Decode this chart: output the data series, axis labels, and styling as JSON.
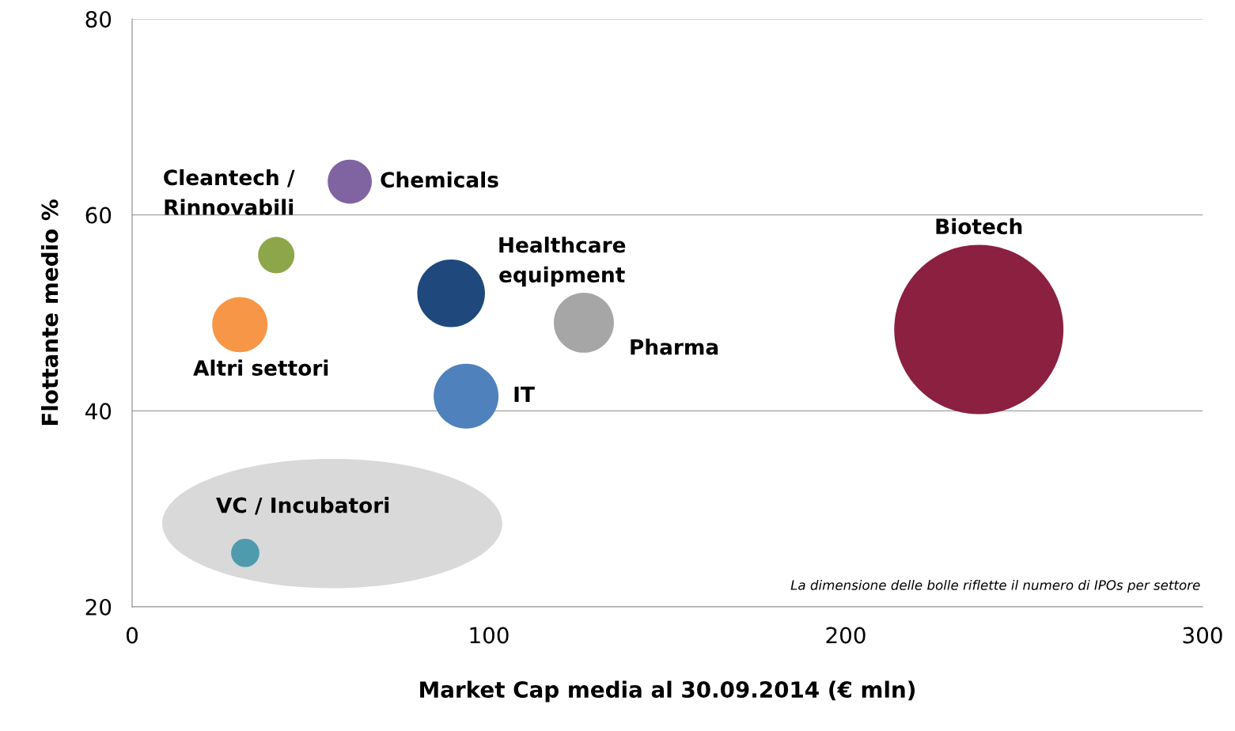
{
  "chart_data": {
    "type": "bubble",
    "xlabel": "Market Cap media al 30.09.2014 (€ mln)",
    "ylabel": "Flottante medio %",
    "xlim": [
      0,
      300
    ],
    "xticks": [
      0,
      100,
      200,
      300
    ],
    "ylim": [
      20,
      80
    ],
    "yticks": [
      20,
      40,
      60,
      80
    ],
    "grid": "y",
    "legend": false,
    "annotations": [
      "La dimensione delle bolle riflette il numero di IPOs per settore"
    ],
    "series": [
      {
        "name": "Cleantech /\nRinnovabili",
        "color": "#8ea64a",
        "x": [
          40.4
        ],
        "values": [
          55.9
        ],
        "sizes": [
          0.046
        ]
      },
      {
        "name": "Chemicals",
        "color": "#8064a2",
        "x": [
          61.0
        ],
        "values": [
          63.4
        ],
        "sizes": [
          0.068
        ]
      },
      {
        "name": "Altri settori",
        "color": "#f79646",
        "x": [
          30.2
        ],
        "values": [
          48.8
        ],
        "sizes": [
          0.107
        ]
      },
      {
        "name": "Healthcare\nequipment",
        "color": "#1f497d",
        "x": [
          89.4
        ],
        "values": [
          52.0
        ],
        "sizes": [
          0.16
        ]
      },
      {
        "name": "IT",
        "color": "#4f81bd",
        "x": [
          93.6
        ],
        "values": [
          41.5
        ],
        "sizes": [
          0.147
        ]
      },
      {
        "name": "Pharma",
        "color": "#a6a6a6",
        "x": [
          126.6
        ],
        "values": [
          49.0
        ],
        "sizes": [
          0.126
        ]
      },
      {
        "name": "Biotech",
        "color": "#8b2040",
        "x": [
          237.3
        ],
        "values": [
          48.3
        ],
        "sizes": [
          1
        ]
      },
      {
        "name": "VC / Incubatori",
        "color": "#4f9bae",
        "x": [
          31.7
        ],
        "values": [
          25.5
        ],
        "sizes": [
          0.028
        ]
      }
    ]
  }
}
